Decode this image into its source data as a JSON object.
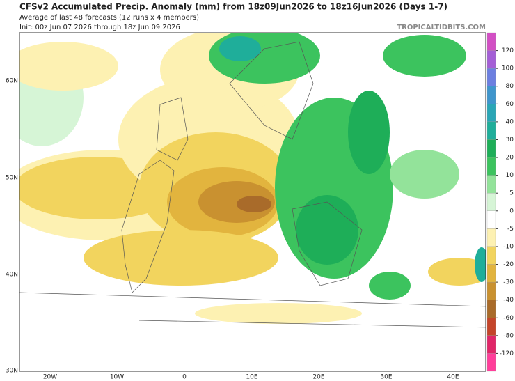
{
  "header": {
    "title": "CFSv2 Accumulated Precip. Anomaly (mm) from 18z09Jun2026 to 18z16Jun2026 (Days 1-7)",
    "subtitle": "Average of last 48 forecasts (12 runs x 4 members)",
    "init": "Init: 00z Jun 07 2026 through 18z Jun 09 2026",
    "credit": "TROPICALTIDBITS.COM"
  },
  "map": {
    "lat_labels": [
      "60N",
      "50N",
      "40N",
      "30N"
    ],
    "lon_labels": [
      "20W",
      "10W",
      "0",
      "10E",
      "20E",
      "30E",
      "40E"
    ]
  },
  "colorbar": {
    "ticks": [
      120,
      100,
      80,
      60,
      40,
      30,
      20,
      10,
      5,
      0,
      -5,
      -10,
      -20,
      -30,
      -40,
      -60,
      -80,
      -120
    ],
    "colors": [
      "#d24fc4",
      "#a45fd6",
      "#6c7fe0",
      "#3f95cc",
      "#2aa6b6",
      "#1fae9a",
      "#1eae58",
      "#3cc35e",
      "#93e39a",
      "#d6f5d6",
      "#ffffff",
      "#fdf1b2",
      "#f2d45e",
      "#e2b43e",
      "#c99130",
      "#a96b2a",
      "#c4452a",
      "#e02668",
      "#ff3e9a"
    ]
  }
}
